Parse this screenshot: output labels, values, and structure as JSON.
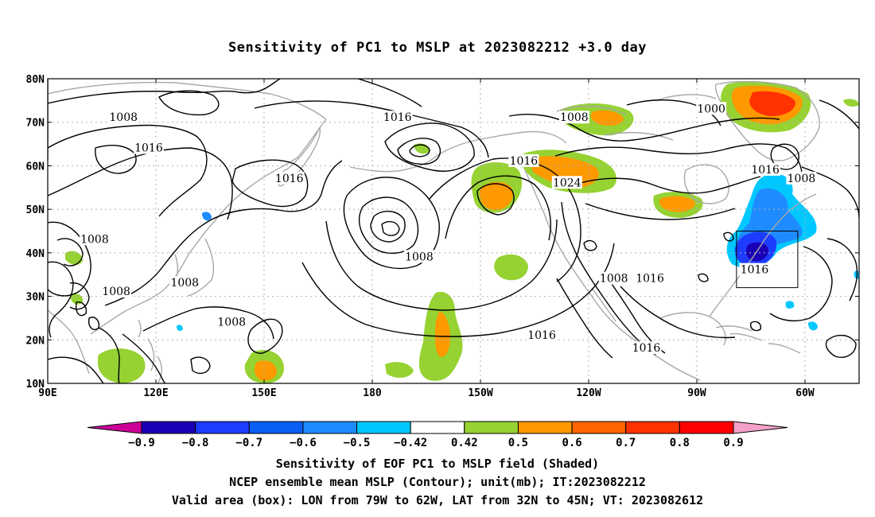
{
  "title": "Sensitivity of PC1 to MSLP at 2023082212 +3.0 day",
  "axes": {
    "lon_ticks": [
      {
        "deg": 90,
        "label": "90E"
      },
      {
        "deg": 120,
        "label": "120E"
      },
      {
        "deg": 150,
        "label": "150E"
      },
      {
        "deg": 180,
        "label": "180"
      },
      {
        "deg": 210,
        "label": "150W"
      },
      {
        "deg": 240,
        "label": "120W"
      },
      {
        "deg": 270,
        "label": "90W"
      },
      {
        "deg": 300,
        "label": "60W"
      }
    ],
    "lat_ticks": [
      {
        "deg": 10,
        "label": "10N"
      },
      {
        "deg": 20,
        "label": "20N"
      },
      {
        "deg": 30,
        "label": "30N"
      },
      {
        "deg": 40,
        "label": "40N"
      },
      {
        "deg": 50,
        "label": "50N"
      },
      {
        "deg": 60,
        "label": "60N"
      },
      {
        "deg": 70,
        "label": "70N"
      },
      {
        "deg": 80,
        "label": "80N"
      }
    ],
    "lon_range": [
      90,
      315
    ],
    "lat_range": [
      10,
      80
    ],
    "grid": true
  },
  "contour_labels": [
    {
      "text": "1008",
      "lon": 111,
      "lat": 71
    },
    {
      "text": "1016",
      "lon": 187,
      "lat": 71
    },
    {
      "text": "1008",
      "lon": 236,
      "lat": 71
    },
    {
      "text": "1000",
      "lon": 274,
      "lat": 73
    },
    {
      "text": "1016",
      "lon": 118,
      "lat": 64
    },
    {
      "text": "1016",
      "lon": 222,
      "lat": 61
    },
    {
      "text": "1016",
      "lon": 289,
      "lat": 59
    },
    {
      "text": "1008",
      "lon": 299,
      "lat": 57
    },
    {
      "text": "1016",
      "lon": 157,
      "lat": 57
    },
    {
      "text": "1024",
      "lon": 234,
      "lat": 56
    },
    {
      "text": "1008",
      "lon": 103,
      "lat": 43
    },
    {
      "text": "1008",
      "lon": 193,
      "lat": 39
    },
    {
      "text": "1008",
      "lon": 128,
      "lat": 33
    },
    {
      "text": "1008",
      "lon": 109,
      "lat": 31
    },
    {
      "text": "1008",
      "lon": 141,
      "lat": 24
    },
    {
      "text": "1016",
      "lon": 227,
      "lat": 21
    },
    {
      "text": "1008",
      "lon": 247,
      "lat": 34
    },
    {
      "text": "1016",
      "lon": 257,
      "lat": 34
    },
    {
      "text": "1016",
      "lon": 286,
      "lat": 36
    },
    {
      "text": "1016",
      "lon": 256,
      "lat": 18
    }
  ],
  "chart_data": {
    "type": "heatmap",
    "title": "Sensitivity of PC1 to MSLP at 2023082212 +3.0 day",
    "xlabel": "",
    "ylabel": "",
    "xlim": [
      90,
      315
    ],
    "ylim": [
      10,
      80
    ],
    "colorbar": {
      "min_label": "-0.9",
      "max_label": "0.9",
      "levels": [
        "-0.9",
        "-0.8",
        "-0.7",
        "-0.6",
        "-0.5",
        "-0.42",
        "0.42",
        "0.5",
        "0.6",
        "0.7",
        "0.8",
        "0.9"
      ],
      "colors": [
        "#cc0099",
        "#1a00b4",
        "#1e3cff",
        "#0a5ef5",
        "#1e8cff",
        "#00c8ff",
        "#ffffff",
        "#96d232",
        "#ff9900",
        "#ff6400",
        "#ff3200",
        "#ff0000",
        "#f5a0c8"
      ]
    },
    "positive_regions": [
      {
        "lon": 213,
        "lat": 52,
        "level": 2
      },
      {
        "lon": 228,
        "lat": 58,
        "level": 2
      },
      {
        "lon": 257,
        "lat": 75,
        "level": 1
      },
      {
        "lon": 275,
        "lat": 50,
        "level": 2
      },
      {
        "lon": 301,
        "lat": 76,
        "level": 4
      },
      {
        "lon": 140,
        "lat": 14,
        "level": 2
      },
      {
        "lon": 196,
        "lat": 25,
        "level": 2
      },
      {
        "lon": 219,
        "lat": 37,
        "level": 2
      },
      {
        "lon": 102,
        "lat": 30,
        "level": 2
      }
    ],
    "negative_regions": [
      {
        "lon": 288,
        "lat": 40,
        "level": 4
      },
      {
        "lon": 296,
        "lat": 48,
        "level": 3
      },
      {
        "lon": 306,
        "lat": 44,
        "level": 2
      }
    ],
    "valid_box": {
      "lon_min": 281,
      "lon_max": 298,
      "lat_min": 32,
      "lat_max": 45
    }
  },
  "caption": {
    "line1": "Sensitivity of EOF PC1 to MSLP field (Shaded)",
    "line2": "NCEP ensemble mean MSLP (Contour); unit(mb); IT:2023082212",
    "line3": "Valid area (box): LON from 79W to 62W, LAT from 32N to 45N; VT: 2023082612"
  }
}
